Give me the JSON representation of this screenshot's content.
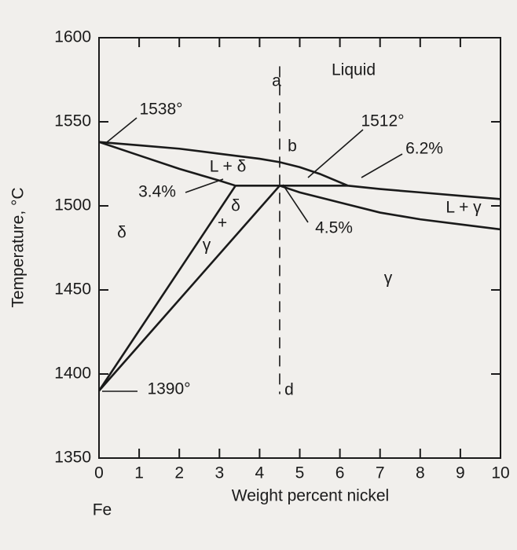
{
  "chart_data": {
    "type": "line",
    "xlabel": "Weight percent nickel",
    "ylabel": "Temperature, °C",
    "origin_label": "Fe",
    "xlim": [
      0,
      10
    ],
    "xticks": [
      0,
      1,
      2,
      3,
      4,
      5,
      6,
      7,
      8,
      9,
      10
    ],
    "ylim": [
      1350,
      1600
    ],
    "yticks": [
      1350,
      1400,
      1450,
      1500,
      1550,
      1600
    ],
    "color": "#1a1a1a",
    "series": [
      {
        "x": [
          0,
          1,
          2,
          3,
          4,
          4.5,
          5,
          5.5,
          6.2,
          7,
          8,
          9,
          10
        ],
        "values": [
          1538,
          1536,
          1534,
          1531,
          1528,
          1526,
          1523,
          1519,
          1512,
          1510,
          1508,
          1506,
          1504
        ]
      },
      {
        "x": [
          0,
          1,
          2,
          3,
          3.4
        ],
        "values": [
          1538,
          1530,
          1522,
          1515,
          1512
        ]
      },
      {
        "x": [
          3.4,
          6.2
        ],
        "values": [
          1512,
          1512
        ]
      },
      {
        "x": [
          4.5,
          5,
          6,
          7,
          8,
          9,
          10
        ],
        "values": [
          1512,
          1508,
          1502,
          1496,
          1492,
          1489,
          1486
        ]
      },
      {
        "x": [
          0,
          3.4
        ],
        "values": [
          1390,
          1512
        ]
      },
      {
        "x": [
          0,
          4.5
        ],
        "values": [
          1390,
          1512
        ]
      },
      {
        "x": [
          4.5,
          4.5
        ],
        "values": [
          1583,
          1388
        ],
        "dashed": true
      }
    ],
    "annotations": [
      "Liquid",
      "a",
      "1538°",
      "1512°",
      "6.2%",
      "b",
      "L + δ",
      "3.4%",
      "δ",
      "+",
      "γ",
      "δ",
      "4.5%",
      "L + γ",
      "γ",
      "1390°",
      "d"
    ]
  }
}
